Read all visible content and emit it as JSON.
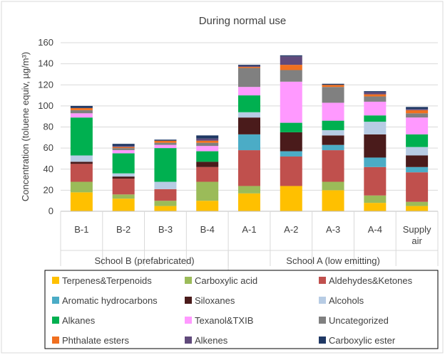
{
  "chart_data": {
    "type": "bar",
    "stacked": true,
    "title": "During normal use",
    "ylabel": "Concentration (toluene equiv, µg/m³)",
    "xlabel": "",
    "ylim": [
      0,
      160
    ],
    "yticks": [
      0,
      20,
      40,
      60,
      80,
      100,
      120,
      140,
      160
    ],
    "grid": true,
    "legend_position": "bottom",
    "categories": [
      "B-1",
      "B-2",
      "B-3",
      "B-4",
      "A-1",
      "A-2",
      "A-3",
      "A-4",
      "Supply air"
    ],
    "groups": [
      {
        "label": "School B (prefabricated)",
        "categories": [
          "B-1",
          "B-2",
          "B-3",
          "B-4"
        ]
      },
      {
        "label": "School A (low emitting)",
        "categories": [
          "A-1",
          "A-2",
          "A-3",
          "A-4",
          "Supply air"
        ]
      }
    ],
    "series": [
      {
        "name": "Terpenes&Terpenoids",
        "color": "#FFC000",
        "values": [
          18,
          12,
          5,
          10,
          17,
          24,
          20,
          8,
          5
        ]
      },
      {
        "name": "Carboxylic acid",
        "color": "#9BBB59",
        "values": [
          10,
          4,
          5,
          18,
          7,
          0,
          8,
          7,
          4
        ]
      },
      {
        "name": "Aldehydes&Ketones",
        "color": "#C0504D",
        "values": [
          17,
          15,
          11,
          14,
          34,
          28,
          30,
          27,
          28
        ]
      },
      {
        "name": "Aromatic hydrocarbons",
        "color": "#4BACC6",
        "values": [
          0,
          0,
          0,
          0,
          15,
          5,
          5,
          9,
          5
        ]
      },
      {
        "name": "Siloxanes",
        "color": "#4A1B1B",
        "values": [
          2,
          2,
          0,
          5,
          16,
          18,
          9,
          22,
          11
        ]
      },
      {
        "name": "Alcohols",
        "color": "#B7CCE4",
        "values": [
          6,
          3,
          7,
          0,
          5,
          0,
          5,
          12,
          8
        ]
      },
      {
        "name": "Alkanes",
        "color": "#00B050",
        "values": [
          36,
          19,
          32,
          10,
          16,
          9,
          9,
          6,
          12
        ]
      },
      {
        "name": "Texanol&TXIB",
        "color": "#FF99FF",
        "values": [
          4,
          3,
          3,
          5,
          8,
          39,
          17,
          13,
          16
        ]
      },
      {
        "name": "Uncategorized",
        "color": "#808080",
        "values": [
          3,
          2,
          2,
          3,
          18,
          11,
          15,
          5,
          4
        ]
      },
      {
        "name": "Phthalate esters",
        "color": "#F07020",
        "values": [
          2,
          1,
          2,
          2,
          1,
          5,
          2,
          2,
          3
        ]
      },
      {
        "name": "Alkenes",
        "color": "#604A7B",
        "values": [
          0,
          1,
          0,
          2,
          1,
          8,
          0,
          2,
          1
        ]
      },
      {
        "name": "Carboxylic ester",
        "color": "#1F3864",
        "values": [
          2,
          2,
          1,
          3,
          1,
          1,
          1,
          1,
          2
        ]
      }
    ]
  }
}
